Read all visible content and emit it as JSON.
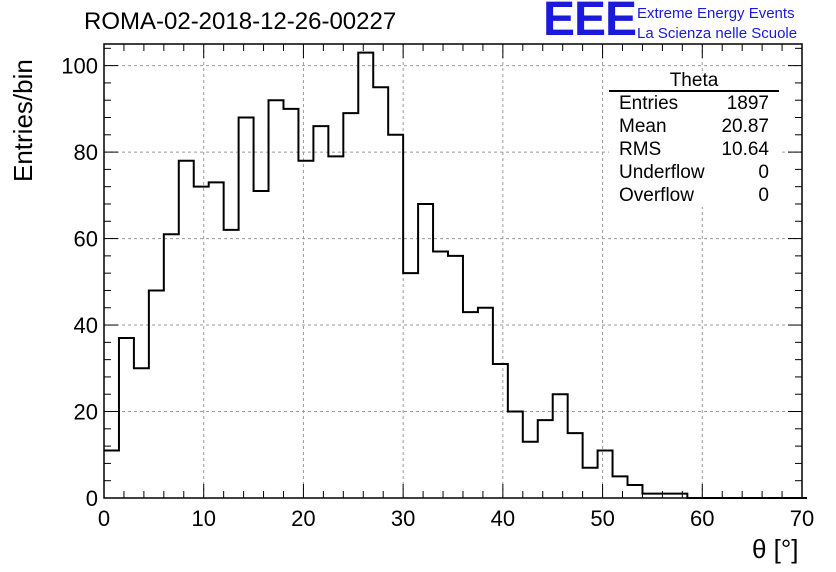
{
  "chart_data": {
    "type": "histogram",
    "title": "ROMA-02-2018-12-26-00227",
    "xlabel": "θ [°]",
    "ylabel": "Entries/bin",
    "xlim": [
      0,
      70
    ],
    "ylim": [
      0,
      105
    ],
    "x_ticks": [
      "0",
      "10",
      "20",
      "30",
      "40",
      "50",
      "60",
      "70"
    ],
    "y_ticks": [
      "0",
      "20",
      "40",
      "60",
      "80",
      "100"
    ],
    "grid": true,
    "bin_width": 1.5,
    "x_start": 0,
    "values": [
      11,
      37,
      30,
      48,
      61,
      78,
      72,
      73,
      62,
      88,
      71,
      92,
      90,
      78,
      86,
      79,
      89,
      103,
      95,
      84,
      52,
      68,
      57,
      56,
      43,
      44,
      31,
      20,
      13,
      18,
      24,
      15,
      7,
      11,
      5,
      3,
      1,
      1,
      1,
      0,
      0,
      0,
      0,
      0,
      0,
      0,
      0
    ]
  },
  "stats_box": {
    "title": "Theta",
    "rows": [
      {
        "label": "Entries",
        "value": "1897"
      },
      {
        "label": "Mean",
        "value": "20.87"
      },
      {
        "label": "RMS",
        "value": "10.64"
      },
      {
        "label": "Underflow",
        "value": "0"
      },
      {
        "label": "Overflow",
        "value": "0"
      }
    ]
  },
  "logo": {
    "mark": "EEE",
    "line1": "Extreme Energy Events",
    "line2": "La Scienza nelle Scuole",
    "color": "#1a1adb"
  }
}
